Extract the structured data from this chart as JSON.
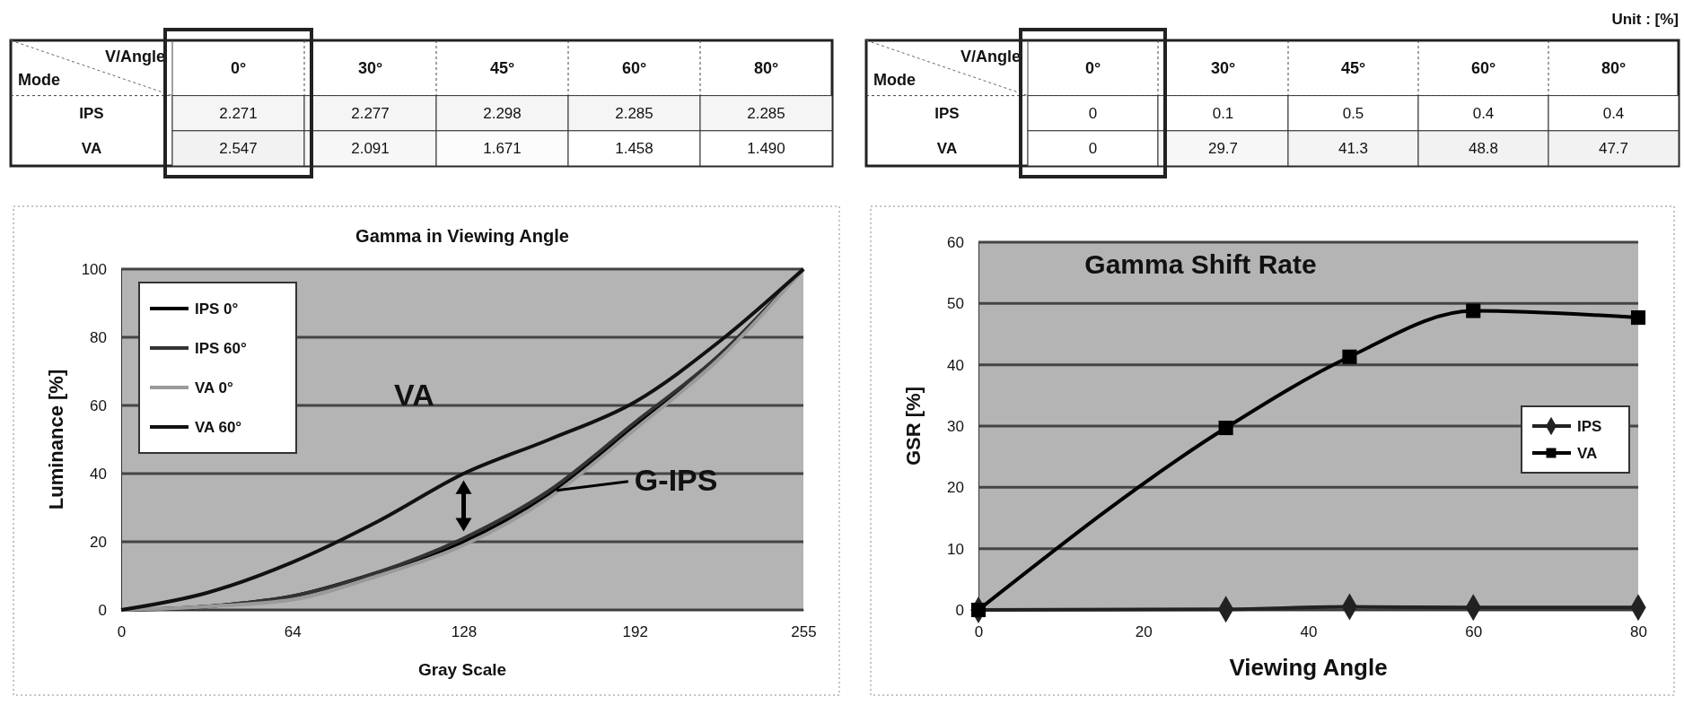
{
  "chart_data": [
    {
      "type": "heatmap",
      "xlabel": "V/Angle",
      "ylabel": "Mode",
      "categories": [
        "0°",
        "30°",
        "45°",
        "60°",
        "80°"
      ],
      "y_categories": [
        "IPS",
        "VA"
      ],
      "cells": [
        [
          2.271,
          2.277,
          2.298,
          2.285,
          2.285
        ],
        [
          2.547,
          2.091,
          1.671,
          1.458,
          1.49
        ]
      ],
      "cell_labels": [
        [
          "2.271",
          "2.277",
          "2.298",
          "2.285",
          "2.285"
        ],
        [
          "2.547",
          "2.091",
          "1.671",
          "1.458",
          "1.490"
        ]
      ]
    },
    {
      "type": "heatmap",
      "xlabel": "V/Angle",
      "ylabel": "Mode",
      "annotations": [
        "Unit : [%]"
      ],
      "categories": [
        "0°",
        "30°",
        "45°",
        "60°",
        "80°"
      ],
      "y_categories": [
        "IPS",
        "VA"
      ],
      "cells": [
        [
          0,
          0.1,
          0.5,
          0.4,
          0.4
        ],
        [
          0,
          29.7,
          41.3,
          48.8,
          47.7
        ]
      ],
      "cell_labels": [
        [
          "0",
          "0.1",
          "0.5",
          "0.4",
          "0.4"
        ],
        [
          "0",
          "29.7",
          "41.3",
          "48.8",
          "47.7"
        ]
      ]
    },
    {
      "type": "line",
      "title": "Gamma in Viewing Angle",
      "xlabel": "Gray Scale",
      "ylabel": "Luminance [%]",
      "xlim": [
        0,
        255
      ],
      "xticks": [
        0,
        64,
        128,
        192,
        255
      ],
      "ylim": [
        0,
        100
      ],
      "yticks": [
        0,
        20,
        40,
        60,
        80,
        100
      ],
      "grid": "y",
      "legend": "top left",
      "marker": "none",
      "annotations": [
        "VA",
        {
          "text": "G-IPS",
          "x": 160,
          "y": 34
        }
      ],
      "series": [
        {
          "name": "IPS 0°",
          "color": "#000000",
          "x": [
            0,
            32,
            64,
            96,
            128,
            160,
            192,
            224,
            255
          ],
          "values": [
            0,
            1,
            4,
            11,
            20,
            34,
            54,
            75,
            100
          ]
        },
        {
          "name": "IPS 60°",
          "color": "#333333",
          "x": [
            0,
            32,
            64,
            96,
            128,
            160,
            192,
            224,
            255
          ],
          "values": [
            0,
            1,
            4,
            11,
            21,
            35,
            55,
            75,
            100
          ]
        },
        {
          "name": "VA 0°",
          "color": "#9a9a9a",
          "x": [
            0,
            32,
            64,
            96,
            128,
            160,
            192,
            224,
            255
          ],
          "values": [
            0,
            1,
            3,
            10,
            19,
            33,
            53,
            74,
            100
          ]
        },
        {
          "name": "VA 60°",
          "color": "#111111",
          "x": [
            0,
            32,
            64,
            96,
            128,
            160,
            192,
            224,
            255
          ],
          "values": [
            0,
            5,
            14,
            26,
            40,
            50,
            61,
            79,
            100
          ]
        }
      ]
    },
    {
      "type": "line",
      "title": "Gamma Shift Rate",
      "xlabel": "Viewing Angle",
      "ylabel": "GSR [%]",
      "xlim": [
        0,
        80
      ],
      "xticks": [
        0,
        20,
        40,
        60,
        80
      ],
      "ylim": [
        0,
        60
      ],
      "yticks": [
        0,
        10,
        20,
        30,
        40,
        50,
        60
      ],
      "grid": "y",
      "legend": "right",
      "series": [
        {
          "name": "IPS",
          "color": "#222222",
          "marker": "diamond",
          "x": [
            0,
            30,
            45,
            60,
            80
          ],
          "values": [
            0,
            0.1,
            0.5,
            0.4,
            0.4
          ]
        },
        {
          "name": "VA",
          "color": "#000000",
          "marker": "square",
          "x": [
            0,
            30,
            45,
            60,
            80
          ],
          "values": [
            0,
            29.7,
            41.3,
            48.8,
            47.7
          ]
        }
      ]
    }
  ]
}
